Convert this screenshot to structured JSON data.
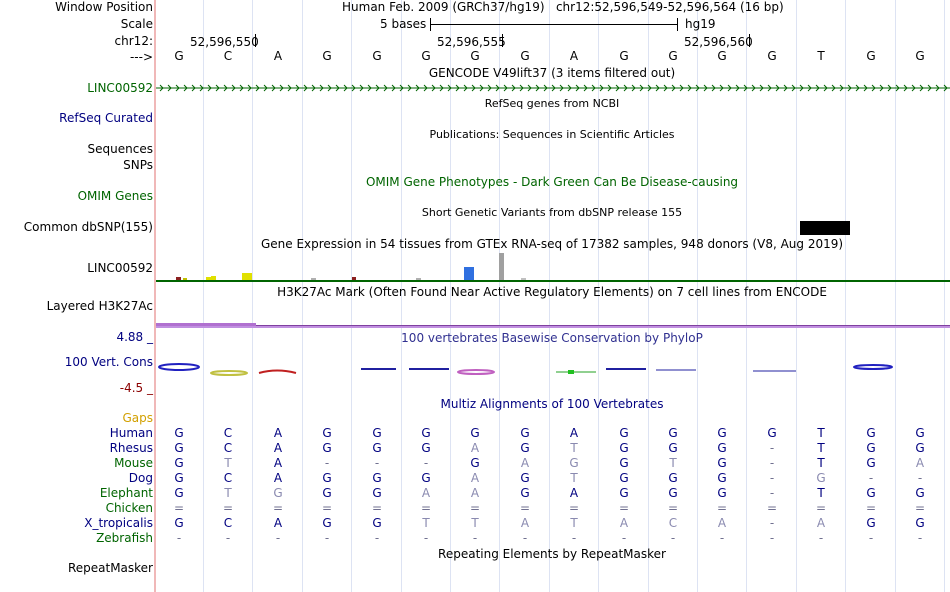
{
  "header": {
    "window_position_label": "Window Position",
    "window_position_value": "Human Feb. 2009 (GRCh37/hg19)   chr12:52,596,549-52,596,564 (16 bp)",
    "scale_label": "Scale",
    "scale_value": "5 bases",
    "scale_assembly": "hg19",
    "chrom_label": "chr12:",
    "positions": [
      "52,596,550",
      "52,596,555",
      "52,596,560"
    ],
    "strand_label": "--->"
  },
  "sequence": [
    "G",
    "C",
    "A",
    "G",
    "G",
    "G",
    "G",
    "G",
    "A",
    "G",
    "G",
    "G",
    "G",
    "T",
    "G",
    "G"
  ],
  "tracks": {
    "gencode": {
      "title": "GENCODE V49lift37 (3 items filtered out)",
      "label": "LINC00592"
    },
    "refseq": {
      "title": "RefSeq genes from NCBI",
      "label": "RefSeq Curated"
    },
    "publications": {
      "title": "Publications: Sequences in Scientific Articles",
      "label_line1": "Sequences",
      "label_line2": "SNPs"
    },
    "omim": {
      "title": "OMIM Gene Phenotypes - Dark Green Can Be Disease-causing",
      "label": "OMIM Genes"
    },
    "dbsnp": {
      "title": "Short Genetic Variants from dbSNP release 155",
      "label": "Common dbSNP(155)"
    },
    "gtex": {
      "title": "Gene Expression in 54 tissues from GTEx RNA-seq of 17382 samples, 948 donors (V8, Aug 2019)",
      "label": "LINC00592"
    },
    "h3k27ac": {
      "title": "H3K27Ac Mark (Often Found Near Active Regulatory Elements) on 7 cell lines from ENCODE",
      "label": "Layered H3K27Ac"
    },
    "phylop": {
      "title": "100 vertebrates Basewise Conservation by PhyloP",
      "label": "100 Vert. Cons",
      "max": "4.88 _",
      "min": "-4.5 _"
    },
    "multiz": {
      "title": "Multiz Alignments of 100 Vertebrates",
      "gaps_label": "Gaps"
    },
    "repeatmasker": {
      "title": "Repeating Elements by RepeatMasker",
      "label": "RepeatMasker"
    }
  },
  "alignments": [
    {
      "species": "Human",
      "bases": [
        "G",
        "C",
        "A",
        "G",
        "G",
        "G",
        "G",
        "G",
        "A",
        "G",
        "G",
        "G",
        "G",
        "T",
        "G",
        "G"
      ]
    },
    {
      "species": "Rhesus",
      "bases": [
        "G",
        "C",
        "A",
        "G",
        "G",
        "G",
        "A",
        "G",
        "T",
        "G",
        "G",
        "G",
        "-",
        "T",
        "G",
        "G"
      ]
    },
    {
      "species": "Mouse",
      "bases": [
        "G",
        "T",
        "A",
        "-",
        "-",
        "-",
        "G",
        "A",
        "G",
        "G",
        "T",
        "G",
        "-",
        "T",
        "G",
        "A"
      ]
    },
    {
      "species": "Dog",
      "bases": [
        "G",
        "C",
        "A",
        "G",
        "G",
        "G",
        "A",
        "G",
        "T",
        "G",
        "G",
        "G",
        "-",
        "G",
        "-",
        "-"
      ]
    },
    {
      "species": "Elephant",
      "bases": [
        "G",
        "T",
        "G",
        "G",
        "G",
        "A",
        "A",
        "G",
        "A",
        "G",
        "G",
        "G",
        "-",
        "T",
        "G",
        "G"
      ]
    },
    {
      "species": "Chicken",
      "bases": [
        "=",
        "=",
        "=",
        "=",
        "=",
        "=",
        "=",
        "=",
        "=",
        "=",
        "=",
        "=",
        "=",
        "=",
        "=",
        "="
      ]
    },
    {
      "species": "X_tropicalis",
      "bases": [
        "G",
        "C",
        "A",
        "G",
        "G",
        "T",
        "T",
        "A",
        "T",
        "A",
        "C",
        "A",
        "-",
        "A",
        "G",
        "G"
      ]
    },
    {
      "species": "Zebrafish",
      "bases": [
        "-",
        "-",
        "-",
        "-",
        "-",
        "-",
        "-",
        "-",
        "-",
        "-",
        "-",
        "-",
        "-",
        "-",
        "-",
        "-"
      ]
    }
  ],
  "colors": {
    "label_blue": "#000080",
    "label_green": "#006400",
    "label_red": "#8b0000",
    "gaps_orange": "#d2a000",
    "gene_green": "#006400",
    "h3k27_purple": "#a050c0"
  }
}
